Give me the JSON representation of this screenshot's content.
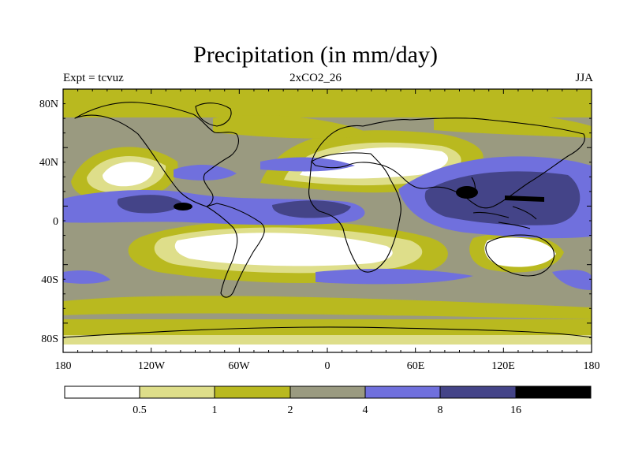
{
  "title": "Precipitation (in mm/day)",
  "experiment_label": "Expt = tcvuz",
  "run_label": "2xCO2_26",
  "season_label": "JJA",
  "lat_ticks": [
    "80N",
    "40N",
    "0",
    "40S",
    "80S"
  ],
  "lon_ticks": [
    "180",
    "120W",
    "60W",
    "0",
    "60E",
    "120E",
    "180"
  ],
  "colorbar": {
    "levels": [
      "0.5",
      "1",
      "2",
      "4",
      "8",
      "16"
    ],
    "colors": [
      "#ffffff",
      "#dede8a",
      "#b9b91f",
      "#9a9a80",
      "#7070dd",
      "#444488",
      "#000000"
    ]
  },
  "colors": {
    "ocean_base": "#9a9a80",
    "dry": "#ffffff",
    "low": "#dede8a",
    "mid": "#b9b91f",
    "wet": "#7070dd",
    "very_wet": "#444488",
    "extreme": "#000000",
    "coast": "#000000"
  }
}
